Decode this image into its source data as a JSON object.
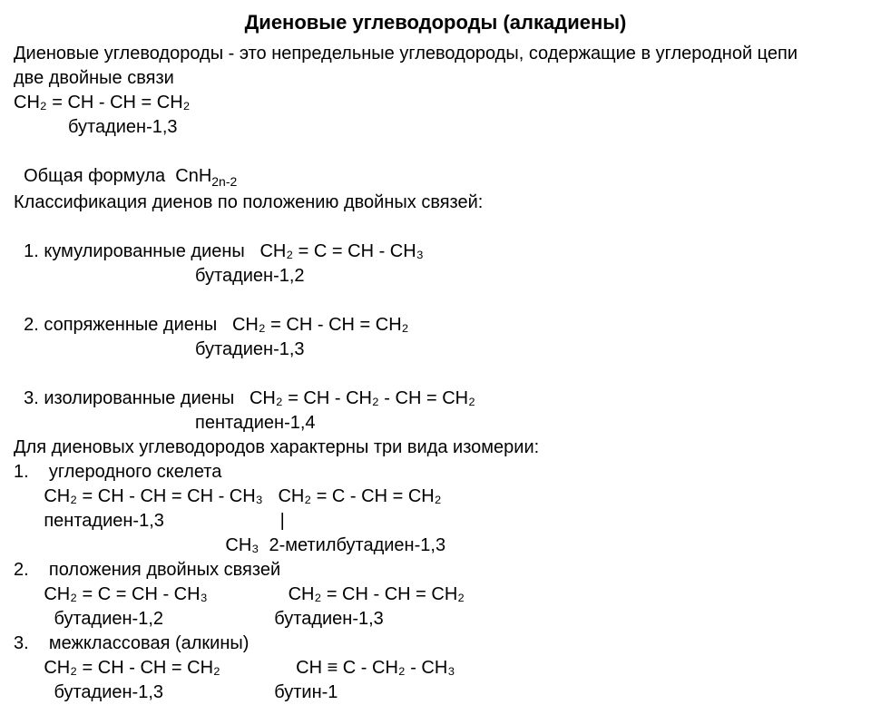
{
  "title": "Диеновые углеводороды (алкадиены)",
  "intro": "Диеновые углеводороды - это непредельные углеводороды, содержащие в углеродной цепи",
  "intro2": "две двойные связи",
  "ex1_formula": "CH₂ = CH - CH = CH₂",
  "ex1_name": "бутадиен-1,3",
  "general_label": "Общая формула  ",
  "general_formula": "CnH",
  "general_sub": "2n-2",
  "class_head": "Классификация диенов по положению двойных связей:",
  "c1_label": "1. кумулированные диены   ",
  "c1_formula": "CH₂ = C = CH - CH₃",
  "c1_name": "бутадиен-1,2",
  "c2_label": "2. сопряженные диены   ",
  "c2_formula": "CH₂ = CH - CH = CH₂",
  "c2_name": "бутадиен-1,3",
  "c3_label": "3. изолированные диены   ",
  "c3_formula": "CH₂ = CH - CH₂ - CH = CH₂",
  "c3_name": "пентадиен-1,4",
  "iso_head": "Для диеновых углеводородов характерны три вида изомерии:",
  "iso1_label": "1.    углеродного скелета",
  "iso1_line1": "      CH₂ = CH - CH = CH - CH₃   CH₂ = C - CH = CH₂",
  "iso1_line2": "      пентадиен-1,3                       |",
  "iso1_line3": "                                          CH₃  2-метилбутадиен-1,3",
  "iso2_label": "2.    положения двойных связей",
  "iso2_line1": "      CH₂ = C = CH - CH₃                CH₂ = CH - CH = CH₂",
  "iso2_line2": "        бутадиен-1,2                      бутадиен-1,3",
  "iso3_label": "3.    межклассовая (алкины)",
  "iso3_line1": "      CH₂ = CH - CH = CH₂               CH ≡ C - CH₂ - CH₃",
  "iso3_line2": "        бутадиен-1,3                      бутин-1"
}
